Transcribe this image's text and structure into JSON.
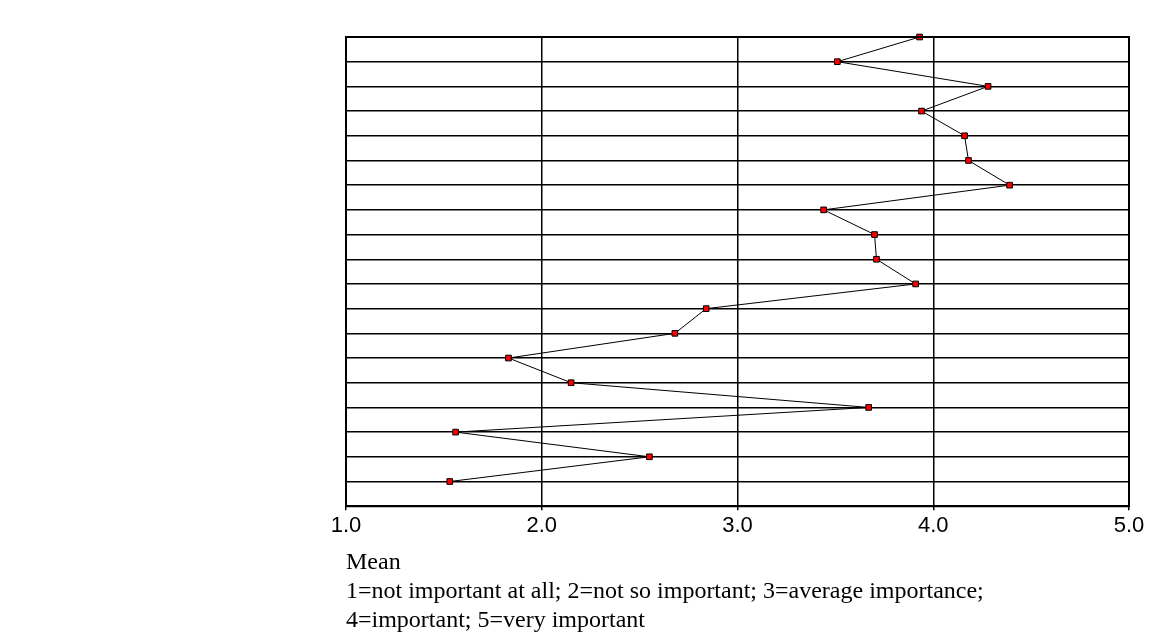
{
  "chart_data": {
    "type": "line",
    "orientation": "horizontal",
    "categories": [
      null,
      null,
      null,
      null,
      null,
      null,
      null,
      null,
      null,
      null,
      null,
      null,
      null,
      null,
      null,
      null,
      null,
      null,
      null,
      null
    ],
    "series": [
      {
        "color": "#ff0000",
        "values": [
          3.93,
          3.51,
          4.28,
          3.94,
          4.16,
          4.18,
          4.39,
          3.44,
          3.7,
          3.71,
          3.91,
          2.84,
          2.68,
          1.83,
          2.15,
          3.67,
          1.56,
          2.55,
          1.53,
          null
        ]
      }
    ],
    "xlabel": "Mean\n1=not important at all; 2=not so important; 3=average importance; 4=important; 5=very important",
    "xlim": [
      1,
      5
    ],
    "xticks": [
      {
        "value": 1,
        "label": "1.0"
      },
      {
        "value": 2,
        "label": "2.0"
      },
      {
        "value": 3,
        "label": "3.0"
      },
      {
        "value": 4,
        "label": "4.0"
      },
      {
        "value": 5,
        "label": "5.0"
      }
    ],
    "grid": true,
    "marker": "square",
    "line_style": "solid",
    "legend": false
  }
}
